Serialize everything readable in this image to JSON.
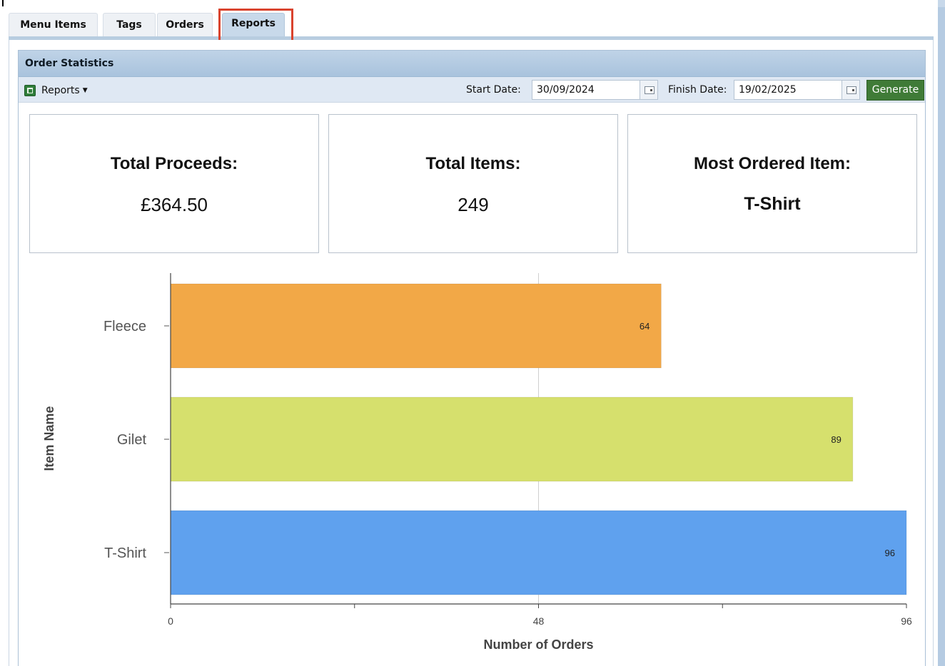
{
  "tabs": [
    {
      "label": "Menu Items",
      "active": false
    },
    {
      "label": "Tags",
      "active": false
    },
    {
      "label": "Orders",
      "active": false
    },
    {
      "label": "Reports",
      "active": true
    }
  ],
  "panel": {
    "title": "Order Statistics"
  },
  "toolbar": {
    "reports_label": "Reports",
    "start_date_label": "Start Date:",
    "start_date_value": "30/09/2024",
    "finish_date_label": "Finish Date:",
    "finish_date_value": "19/02/2025",
    "generate_label": "Generate"
  },
  "stats": {
    "total_proceeds_label": "Total Proceeds:",
    "total_proceeds_value": "£364.50",
    "total_items_label": "Total Items:",
    "total_items_value": "249",
    "most_ordered_label": "Most Ordered Item:",
    "most_ordered_value": "T-Shirt"
  },
  "colors": {
    "accent_tab_highlight": "#d9432e",
    "generate_button": "#3f7b37",
    "header_blue": "#bfd3e7"
  },
  "chart_data": {
    "type": "bar",
    "orientation": "horizontal",
    "categories": [
      "Fleece",
      "Gilet",
      "T-Shirt"
    ],
    "values": [
      64,
      89,
      96
    ],
    "colors": [
      "#f2a847",
      "#d6e06d",
      "#5fa1ee"
    ],
    "data_labels": [
      "64",
      "89",
      "96"
    ],
    "xlabel": "Number of Orders",
    "ylabel": "Item Name",
    "xlim": [
      0,
      96
    ],
    "xticks": [
      "0",
      "48",
      "96"
    ],
    "grid": "vertical at 48"
  }
}
